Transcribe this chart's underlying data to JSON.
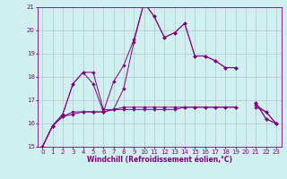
{
  "x": [
    0,
    1,
    2,
    3,
    4,
    5,
    6,
    7,
    8,
    9,
    10,
    11,
    12,
    13,
    14,
    15,
    16,
    17,
    18,
    19,
    20,
    21,
    22,
    23
  ],
  "line1": [
    15.0,
    15.9,
    16.4,
    17.7,
    18.2,
    18.2,
    16.6,
    16.6,
    17.5,
    19.5,
    21.2,
    20.6,
    19.7,
    19.9,
    20.3,
    18.9,
    18.9,
    18.7,
    18.4,
    18.4,
    null,
    16.9,
    16.2,
    16.0
  ],
  "line2": [
    15.0,
    15.9,
    16.4,
    17.7,
    18.2,
    17.7,
    16.5,
    17.8,
    18.5,
    19.6,
    21.2,
    20.6,
    19.7,
    19.9,
    20.3,
    18.9,
    18.9,
    18.7,
    18.4,
    18.4,
    null,
    16.9,
    16.2,
    16.0
  ],
  "line3": [
    15.0,
    15.9,
    16.3,
    16.4,
    16.5,
    16.5,
    16.5,
    16.6,
    16.6,
    16.6,
    16.6,
    16.6,
    16.6,
    16.6,
    16.7,
    16.7,
    16.7,
    16.7,
    16.7,
    16.7,
    null,
    16.7,
    16.5,
    16.0
  ],
  "line4": [
    15.0,
    15.9,
    16.3,
    16.5,
    16.5,
    16.5,
    16.5,
    16.6,
    16.7,
    16.7,
    16.7,
    16.7,
    16.7,
    16.7,
    16.7,
    16.7,
    16.7,
    16.7,
    16.7,
    16.7,
    null,
    16.8,
    16.5,
    16.0
  ],
  "ylim": [
    15,
    21
  ],
  "xlim": [
    -0.5,
    23.5
  ],
  "yticks": [
    15,
    16,
    17,
    18,
    19,
    20,
    21
  ],
  "xticks": [
    0,
    1,
    2,
    3,
    4,
    5,
    6,
    7,
    8,
    9,
    10,
    11,
    12,
    13,
    14,
    15,
    16,
    17,
    18,
    19,
    20,
    21,
    22,
    23
  ],
  "xlabel": "Windchill (Refroidissement éolien,°C)",
  "line_color": "#800080",
  "bg_color": "#d0f0f0",
  "grid_color": "#b0b8cc",
  "marker": "D",
  "marker_size": 2.0,
  "tick_fontsize": 5.0,
  "xlabel_fontsize": 5.5,
  "linewidth": 0.7
}
